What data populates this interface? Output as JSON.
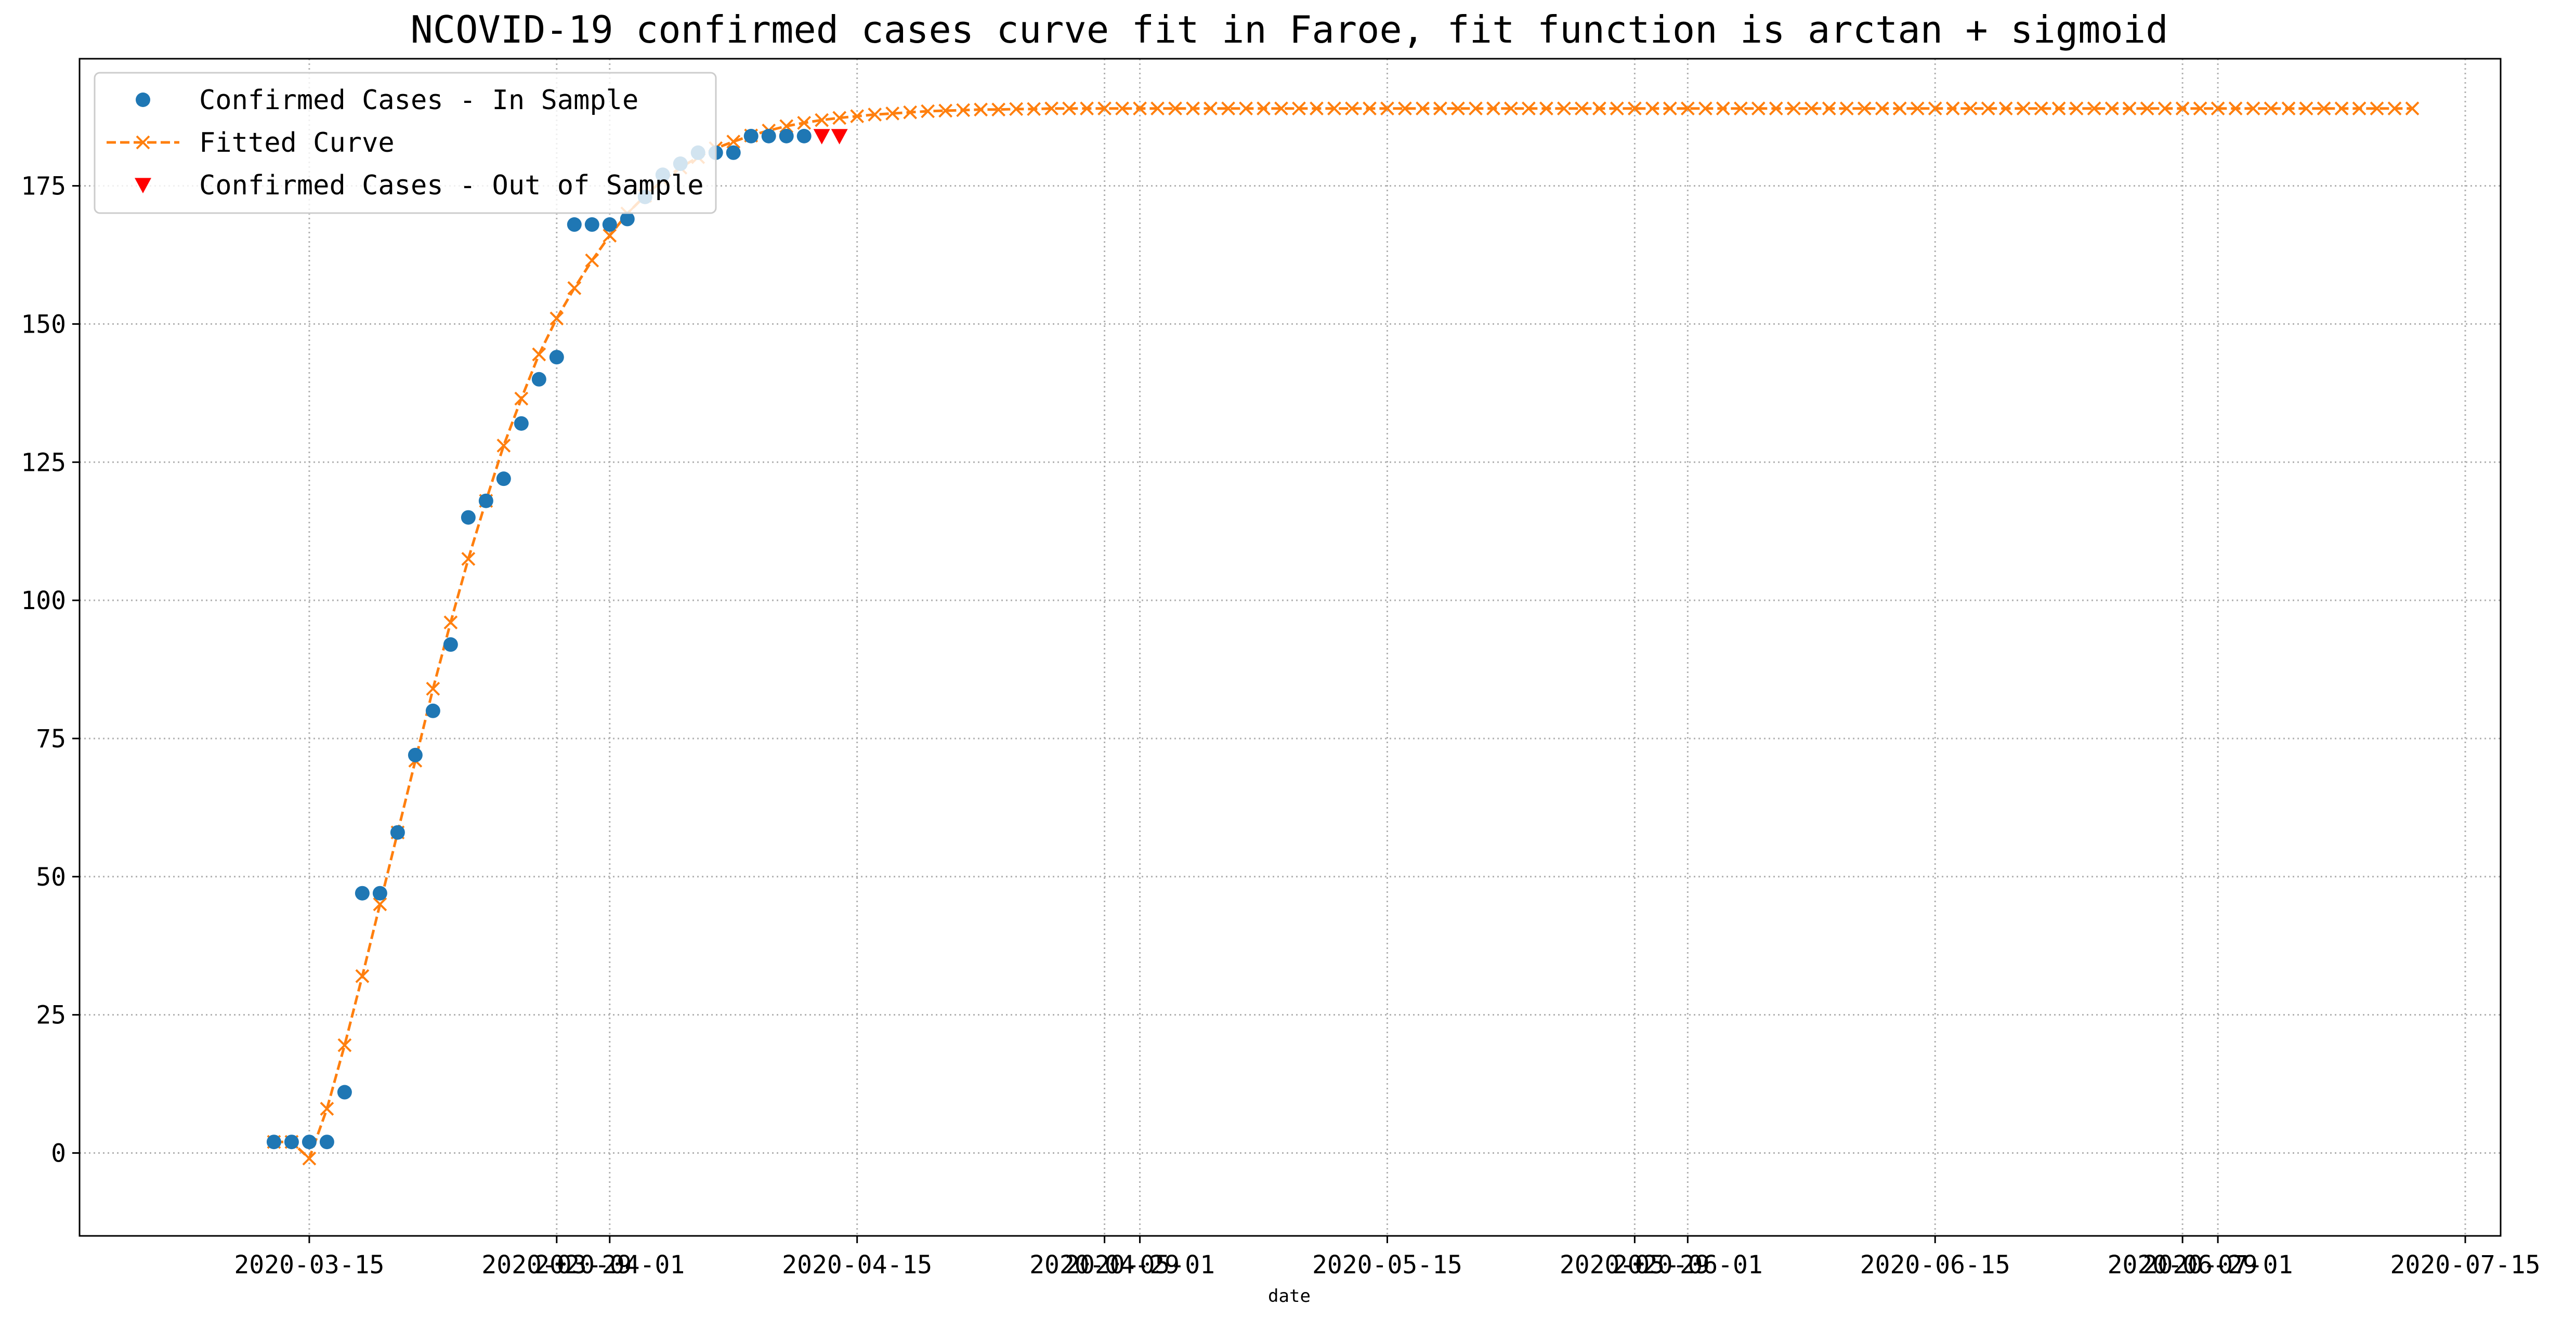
{
  "chart_data": {
    "type": "line",
    "title": "NCOVID-19 confirmed cases curve fit in Faroe, fit function is arctan + sigmoid",
    "xlabel": "date",
    "ylabel": "",
    "xlim": [
      "2020-03-02",
      "2020-07-17"
    ],
    "ylim": [
      -15,
      198
    ],
    "grid": true,
    "legend_position": "top-left",
    "x_ticks": [
      {
        "date": "2020-03-15",
        "label": "2020-03-15"
      },
      {
        "date": "2020-03-29",
        "label": "2020-03-29"
      },
      {
        "date": "2020-04-01",
        "label": "2020-04-01"
      },
      {
        "date": "2020-04-15",
        "label": "2020-04-15"
      },
      {
        "date": "2020-04-29",
        "label": "2020-04-29"
      },
      {
        "date": "2020-05-01",
        "label": "2020-05-01"
      },
      {
        "date": "2020-05-15",
        "label": "2020-05-15"
      },
      {
        "date": "2020-05-29",
        "label": "2020-05-29"
      },
      {
        "date": "2020-06-01",
        "label": "2020-06-01"
      },
      {
        "date": "2020-06-15",
        "label": "2020-06-15"
      },
      {
        "date": "2020-06-29",
        "label": "2020-06-29"
      },
      {
        "date": "2020-07-01",
        "label": "2020-07-01"
      },
      {
        "date": "2020-07-15",
        "label": "2020-07-15"
      }
    ],
    "y_ticks": [
      0,
      25,
      50,
      75,
      100,
      125,
      150,
      175
    ],
    "series": [
      {
        "name": "Confirmed Cases - In Sample",
        "style": "points",
        "marker": "circle",
        "color": "#1f77b4",
        "x": [
          "2020-03-13",
          "2020-03-14",
          "2020-03-15",
          "2020-03-16",
          "2020-03-17",
          "2020-03-18",
          "2020-03-19",
          "2020-03-20",
          "2020-03-21",
          "2020-03-22",
          "2020-03-23",
          "2020-03-24",
          "2020-03-25",
          "2020-03-26",
          "2020-03-27",
          "2020-03-28",
          "2020-03-29",
          "2020-03-30",
          "2020-03-31",
          "2020-04-01",
          "2020-04-02",
          "2020-04-03",
          "2020-04-04",
          "2020-04-05",
          "2020-04-06",
          "2020-04-07",
          "2020-04-08",
          "2020-04-09",
          "2020-04-10",
          "2020-04-11",
          "2020-04-12"
        ],
        "y": [
          2,
          2,
          2,
          2,
          11,
          47,
          47,
          58,
          72,
          80,
          92,
          115,
          118,
          122,
          132,
          140,
          144,
          168,
          168,
          168,
          169,
          173,
          177,
          179,
          181,
          181,
          181,
          184,
          184,
          184,
          184
        ]
      },
      {
        "name": "Fitted Curve",
        "style": "dashed-line",
        "marker": "x",
        "color": "#ff7f0e",
        "x_start": "2020-03-13",
        "x_step_days": 1,
        "y": [
          2,
          2,
          -1,
          8,
          19.5,
          32,
          45,
          58,
          71,
          84,
          96,
          107.5,
          118,
          128,
          136.5,
          144.5,
          151,
          156.5,
          161.5,
          166,
          170,
          173.2,
          176,
          178.3,
          180.2,
          181.8,
          183,
          184.1,
          185,
          185.8,
          186.4,
          186.9,
          187.3,
          187.6,
          187.9,
          188.1,
          188.3,
          188.5,
          188.6,
          188.7,
          188.8,
          188.8,
          188.9,
          188.9,
          189,
          189,
          189,
          189,
          189,
          189,
          189,
          189,
          189,
          189,
          189,
          189,
          189,
          189,
          189,
          189,
          189,
          189,
          189,
          189,
          189,
          189,
          189,
          189,
          189,
          189,
          189,
          189,
          189,
          189,
          189,
          189,
          189,
          189,
          189,
          189,
          189,
          189,
          189,
          189,
          189,
          189,
          189,
          189,
          189,
          189,
          189,
          189,
          189,
          189,
          189,
          189,
          189,
          189,
          189,
          189,
          189,
          189,
          189,
          189,
          189,
          189,
          189,
          189,
          189,
          189,
          189,
          189,
          189,
          189,
          189,
          189,
          189,
          189,
          189,
          189,
          189,
          189
        ]
      },
      {
        "name": "Confirmed Cases - Out of Sample",
        "style": "points",
        "marker": "triangle-down",
        "color": "#ff0000",
        "x": [
          "2020-04-13",
          "2020-04-14"
        ],
        "y": [
          184,
          184
        ]
      }
    ]
  }
}
